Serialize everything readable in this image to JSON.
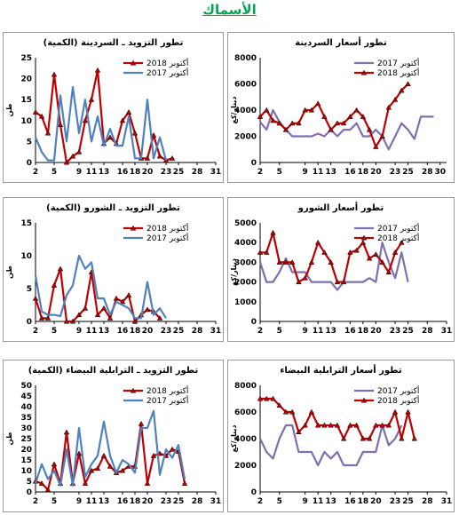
{
  "page": {
    "title": "الأسماك"
  },
  "colors": {
    "series_2017": "#4f81bd",
    "series_2018": "#c00000",
    "title": "#00a651"
  },
  "chart_data": [
    {
      "id": "sardine-price",
      "type": "line",
      "title": "تطور أسعار السردينة",
      "ylabel": "دينار/كغ",
      "xlabel": "",
      "ylim": [
        0,
        8000
      ],
      "yticks": [
        0,
        2000,
        4000,
        6000,
        8000
      ],
      "x": [
        2,
        3,
        4,
        5,
        6,
        7,
        8,
        9,
        10,
        11,
        12,
        13,
        14,
        15,
        16,
        17,
        18,
        19,
        20,
        21,
        22,
        23,
        24,
        25,
        26,
        27,
        28,
        29,
        30,
        31
      ],
      "xtick_labels": [
        2,
        5,
        9,
        11,
        13,
        16,
        18,
        20,
        23,
        25,
        28,
        30
      ],
      "legend": "top-right",
      "series": [
        {
          "name": "أكتوبر 2017",
          "color": "#7f6fb0",
          "marker": false,
          "values": [
            3100,
            2500,
            4000,
            3100,
            2500,
            2000,
            2000,
            2000,
            2000,
            2200,
            2000,
            2500,
            2000,
            2500,
            2500,
            3000,
            2000,
            2000,
            2500,
            2000,
            1000,
            2000,
            3000,
            2500,
            1800,
            3500,
            3500,
            3500,
            null,
            null
          ]
        },
        {
          "name": "أكتوبر 2018",
          "color": "#c00000",
          "marker": true,
          "values": [
            3500,
            4000,
            3200,
            3000,
            2500,
            3000,
            3000,
            4000,
            4000,
            4500,
            3500,
            2500,
            3000,
            3000,
            3500,
            4000,
            3500,
            2500,
            1200,
            2000,
            4200,
            4800,
            5500,
            6000,
            null,
            null,
            null,
            null,
            null,
            null
          ]
        }
      ]
    },
    {
      "id": "sardine-supply",
      "type": "line",
      "title": "تطور التزويد ـ السردينة (الكمية)",
      "ylabel": "طن",
      "xlabel": "",
      "ylim": [
        0,
        25
      ],
      "yticks": [
        0,
        5,
        10,
        15,
        20,
        25
      ],
      "x": [
        2,
        3,
        4,
        5,
        6,
        7,
        8,
        9,
        10,
        11,
        12,
        13,
        14,
        15,
        16,
        17,
        18,
        19,
        20,
        21,
        22,
        23,
        24,
        25,
        26,
        27,
        28,
        29,
        30,
        31
      ],
      "xtick_labels": [
        2,
        5,
        9,
        11,
        13,
        16,
        18,
        20,
        23,
        25,
        28,
        31
      ],
      "legend": "top-right",
      "series": [
        {
          "name": "أكتوبر 2018",
          "color": "#c00000",
          "marker": true,
          "values": [
            12,
            11,
            7,
            21,
            9,
            0,
            1.5,
            2.5,
            10,
            15,
            22,
            4.5,
            6,
            4.5,
            10,
            12,
            7,
            1,
            1,
            6.5,
            1.5,
            0.5,
            1,
            null,
            null,
            null,
            null,
            null,
            null,
            null
          ]
        },
        {
          "name": "أكتوبر 2017",
          "color": "#4f81bd",
          "marker": false,
          "values": [
            6,
            2.5,
            0.5,
            0.5,
            16,
            5,
            18,
            7,
            15,
            5,
            11,
            4,
            8,
            4,
            4,
            11,
            1,
            1,
            15,
            1,
            6,
            0.5,
            null,
            null,
            null,
            null,
            null,
            null,
            null,
            null
          ]
        }
      ]
    },
    {
      "id": "shrimp-price",
      "type": "line",
      "title": "تطور أسعار الشورو",
      "ylabel": "دينار/كغ",
      "xlabel": "",
      "ylim": [
        0,
        5000
      ],
      "yticks": [
        0,
        1000,
        2000,
        3000,
        4000,
        5000
      ],
      "x": [
        2,
        3,
        4,
        5,
        6,
        7,
        8,
        9,
        10,
        11,
        12,
        13,
        14,
        15,
        16,
        17,
        18,
        19,
        20,
        21,
        22,
        23,
        24,
        25,
        26,
        27,
        28,
        29,
        30,
        31
      ],
      "xtick_labels": [
        2,
        5,
        9,
        11,
        13,
        16,
        18,
        20,
        23,
        25,
        28,
        31
      ],
      "legend": "top-right",
      "series": [
        {
          "name": "أكتوبر 2017",
          "color": "#7f6fb0",
          "marker": false,
          "values": [
            3000,
            2000,
            2000,
            2500,
            3200,
            2500,
            2500,
            2500,
            2000,
            2000,
            2000,
            2000,
            1600,
            2000,
            2000,
            2000,
            2000,
            2200,
            2000,
            4000,
            3000,
            2200,
            3500,
            2000,
            null,
            null,
            null,
            null,
            null,
            null
          ]
        },
        {
          "name": "أكتوبر 2018",
          "color": "#c00000",
          "marker": true,
          "values": [
            3500,
            3500,
            4500,
            3000,
            3000,
            3000,
            2000,
            2200,
            3000,
            4000,
            3500,
            3000,
            2000,
            2000,
            3500,
            3600,
            4000,
            3200,
            3400,
            3000,
            2500,
            3500,
            4000,
            null,
            null,
            null,
            null,
            null,
            null,
            null
          ]
        }
      ]
    },
    {
      "id": "shrimp-supply",
      "type": "line",
      "title": "تطور التزويد ـ الشورو (الكمية)",
      "ylabel": "طن",
      "xlabel": "",
      "ylim": [
        0,
        15
      ],
      "yticks": [
        0,
        5,
        10,
        15
      ],
      "x": [
        2,
        3,
        4,
        5,
        6,
        7,
        8,
        9,
        10,
        11,
        12,
        13,
        14,
        15,
        16,
        17,
        18,
        19,
        20,
        21,
        22,
        23,
        24,
        25,
        26,
        27,
        28,
        29,
        30,
        31
      ],
      "xtick_labels": [
        2,
        5,
        9,
        11,
        13,
        16,
        18,
        20,
        23,
        25,
        28,
        31
      ],
      "legend": "top-right",
      "series": [
        {
          "name": "أكتوبر 2018",
          "color": "#c00000",
          "marker": true,
          "values": [
            3.5,
            0.5,
            0.5,
            5.5,
            8,
            0,
            0,
            1,
            2,
            7.5,
            1,
            2,
            0.5,
            3.5,
            3,
            4,
            0,
            1,
            1.8,
            1.5,
            0.5,
            null,
            null,
            null,
            null,
            null,
            null,
            null,
            null,
            null
          ]
        },
        {
          "name": "أكتوبر 2017",
          "color": "#4f81bd",
          "marker": false,
          "values": [
            7,
            1.5,
            1,
            1,
            0.8,
            4,
            5.5,
            10,
            8,
            9,
            3.5,
            3.5,
            1,
            3,
            2.5,
            2,
            0.5,
            0.5,
            6,
            1,
            2,
            0.5,
            null,
            null,
            null,
            null,
            null,
            null,
            null,
            null
          ]
        }
      ]
    },
    {
      "id": "sardinella-price",
      "type": "line",
      "title": "تطور أسعار الترابلية البيضاء",
      "ylabel": "دينار/كغ",
      "xlabel": "",
      "ylim": [
        0,
        8000
      ],
      "yticks": [
        0,
        2000,
        4000,
        6000,
        8000
      ],
      "x": [
        2,
        3,
        4,
        5,
        6,
        7,
        8,
        9,
        10,
        11,
        12,
        13,
        14,
        15,
        16,
        17,
        18,
        19,
        20,
        21,
        22,
        23,
        24,
        25,
        26,
        27,
        28,
        29,
        30,
        31
      ],
      "xtick_labels": [
        2,
        5,
        9,
        11,
        13,
        16,
        18,
        20,
        23,
        25,
        28,
        31
      ],
      "legend": "top-right",
      "series": [
        {
          "name": "أكتوبر 2017",
          "color": "#7f6fb0",
          "marker": false,
          "values": [
            4000,
            3000,
            2500,
            4000,
            5000,
            5000,
            3000,
            3000,
            3000,
            2000,
            3000,
            2500,
            3000,
            2000,
            2000,
            2000,
            3000,
            3000,
            3000,
            5000,
            3500,
            4000,
            5000,
            null,
            null,
            null,
            null,
            null,
            null,
            null
          ]
        },
        {
          "name": "أكتوبر 2018",
          "color": "#c00000",
          "marker": true,
          "values": [
            7000,
            7000,
            7000,
            6500,
            6000,
            6000,
            4500,
            5000,
            6000,
            5000,
            5000,
            5000,
            5000,
            4000,
            5000,
            5000,
            4000,
            4000,
            5000,
            5000,
            5000,
            6000,
            4000,
            6000,
            4000,
            null,
            null,
            null,
            null,
            null
          ]
        }
      ]
    },
    {
      "id": "sardinella-supply",
      "type": "line",
      "title": "تطور التزويد ـ الترابلية البيضاء (الكمية)",
      "ylabel": "طن",
      "xlabel": "",
      "ylim": [
        0,
        50
      ],
      "yticks": [
        0,
        5,
        10,
        15,
        20,
        25,
        30,
        35,
        40,
        45,
        50
      ],
      "x": [
        2,
        3,
        4,
        5,
        6,
        7,
        8,
        9,
        10,
        11,
        12,
        13,
        14,
        15,
        16,
        17,
        18,
        19,
        20,
        21,
        22,
        23,
        24,
        25,
        26,
        27,
        28,
        29,
        30,
        31
      ],
      "xtick_labels": [
        2,
        5,
        9,
        11,
        13,
        16,
        18,
        20,
        23,
        25,
        28,
        31
      ],
      "legend": "top-right",
      "series": [
        {
          "name": "أكتوبر 2018",
          "color": "#c00000",
          "marker": true,
          "values": [
            5,
            4,
            1,
            13,
            4,
            28,
            4,
            18,
            4,
            10,
            11,
            17,
            12,
            9,
            10,
            12,
            12,
            32,
            4,
            17,
            18,
            17,
            20,
            19,
            4,
            null,
            null,
            null,
            null,
            null
          ]
        },
        {
          "name": "أكتوبر 2017",
          "color": "#4f81bd",
          "marker": false,
          "values": [
            4,
            13,
            6,
            10,
            3,
            20,
            3,
            30,
            7,
            13,
            17,
            33,
            17,
            9,
            15,
            13,
            9,
            30,
            30,
            38,
            8,
            20,
            16,
            22,
            6,
            null,
            null,
            null,
            null,
            null
          ]
        }
      ]
    }
  ]
}
